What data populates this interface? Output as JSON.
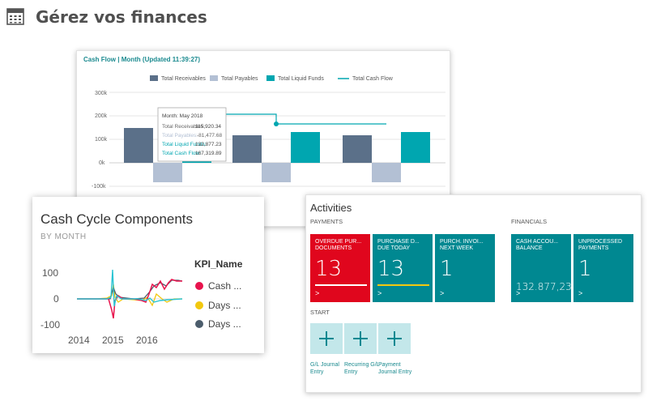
{
  "header": {
    "title": "Gérez vos finances",
    "icon": "calculator-icon"
  },
  "cash_flow": {
    "title": "Cash Flow | Month (Updated 11:39:27)",
    "legend": [
      "Total Receivables",
      "Total Payables",
      "Total Liquid Funds",
      "Total Cash Flow"
    ],
    "yticks": [
      "300k",
      "200k",
      "100k",
      "0k",
      "-100k"
    ],
    "tooltip": {
      "month": "Month: May 2018",
      "rows": [
        {
          "label": "Total Receivables:",
          "value": "115,920.34"
        },
        {
          "label": "Total Payables:",
          "value": "-81,477.68"
        },
        {
          "label": "Total Liquid Funds:",
          "value": "132,877.23"
        },
        {
          "label": "Total Cash Flow:",
          "value": "167,319.89"
        }
      ]
    }
  },
  "cash_cycle": {
    "title": "Cash Cycle Components",
    "subtitle": "BY MONTH",
    "yticks": [
      "100",
      "0",
      "-100"
    ],
    "xticks": [
      "2014",
      "2015",
      "2016"
    ],
    "legend_title": "KPI_Name",
    "legend": [
      "Cash ...",
      "Days ...",
      "Days ..."
    ]
  },
  "activities": {
    "title": "Activities",
    "payments_label": "PAYMENTS",
    "financials_label": "FINANCIALS",
    "start_label": "START",
    "tiles": [
      {
        "label": "OVERDUE PUR... DOCUMENTS",
        "value": "13",
        "arrow": ">"
      },
      {
        "label": "PURCHASE D... DUE TODAY",
        "value": "13",
        "arrow": ">"
      },
      {
        "label": "PURCH. INVOI... NEXT WEEK",
        "value": "1",
        "arrow": ">"
      },
      {
        "label": "CASH ACCOU... BALANCE",
        "value": "132.877,23",
        "arrow": ">"
      },
      {
        "label": "UNPROCESSED PAYMENTS",
        "value": "1",
        "arrow": ">"
      }
    ],
    "start_actions": [
      {
        "label": "G/L Journal Entry"
      },
      {
        "label": "Recurring G/L Entry"
      },
      {
        "label": "Payment Journal Entry"
      }
    ]
  },
  "colors": {
    "receivables": "#5b7089",
    "payables": "#b3c0d4",
    "liquid_funds": "#00a6b0",
    "cash_flow": "#00a6b0",
    "tile_red": "#e0061d",
    "tile_teal": "#008891",
    "legend_red": "#e8134d",
    "legend_yellow": "#f2c80f",
    "legend_dark": "#4c5d6c"
  }
}
